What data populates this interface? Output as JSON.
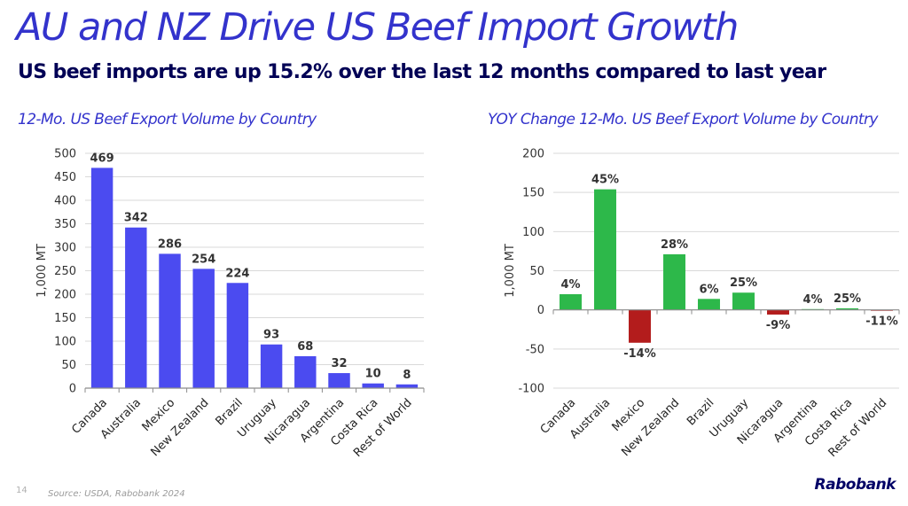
{
  "header": {
    "title": "AU and NZ Drive US Beef Import Growth",
    "subtitle": "US beef imports are up 15.2% over the last 12 months compared to last year"
  },
  "footer": {
    "page_number": "14",
    "source": "Source: USDA, Rabobank 2024",
    "logo": "Rabobank"
  },
  "colors": {
    "title": "#3333cc",
    "bar_volume": "#4b4bf0",
    "bar_positive": "#2db84a",
    "bar_negative": "#b31c1c"
  },
  "chart_data": [
    {
      "type": "bar",
      "title": "12-Mo. US Beef Export Volume by Country",
      "ylabel": "1,000 MT",
      "categories": [
        "Canada",
        "Australia",
        "Mexico",
        "New Zealand",
        "Brazil",
        "Uruguay",
        "Nicaragua",
        "Argentina",
        "Costa Rica",
        "Rest of World"
      ],
      "values": [
        469,
        342,
        286,
        254,
        224,
        93,
        68,
        32,
        10,
        8
      ],
      "data_labels": [
        "469",
        "342",
        "286",
        "254",
        "224",
        "93",
        "68",
        "32",
        "10",
        "8"
      ],
      "ylim": [
        0,
        500
      ],
      "yticks": [
        0,
        50,
        100,
        150,
        200,
        250,
        300,
        350,
        400,
        450,
        500
      ],
      "grid": true
    },
    {
      "type": "bar",
      "title": "YOY Change 12-Mo. US Beef Export Volume by Country",
      "ylabel": "1,000 MT",
      "categories": [
        "Canada",
        "Australia",
        "Mexico",
        "New Zealand",
        "Brazil",
        "Uruguay",
        "Nicaragua",
        "Argentina",
        "Costa Rica",
        "Rest of World"
      ],
      "values": [
        20,
        154,
        -42,
        71,
        14,
        22,
        -6,
        1,
        2,
        -1
      ],
      "data_labels": [
        "4%",
        "45%",
        "-14%",
        "28%",
        "6%",
        "25%",
        "-9%",
        "4%",
        "25%",
        "-11%"
      ],
      "ylim": [
        -100,
        200
      ],
      "yticks": [
        -100,
        -50,
        0,
        50,
        100,
        150,
        200
      ],
      "grid": true
    }
  ]
}
